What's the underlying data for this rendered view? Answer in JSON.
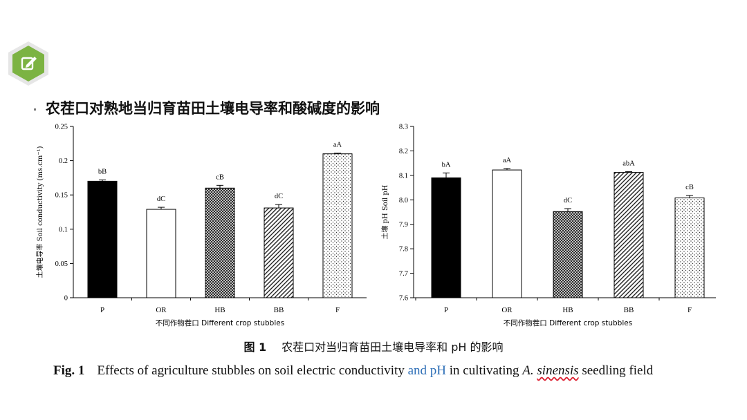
{
  "slide": {
    "title": "农茬口对熟地当归育苗田土壤电导率和酸碱度的影响",
    "badge_icon": "edit-note-icon",
    "accent_color": "#7cb342"
  },
  "caption": {
    "cn_label": "图 1",
    "cn_text": "农茬口对当归育苗田土壤电导率和 pH 的影响",
    "en_label": "Fig. 1",
    "en_text_1": "Effects of agriculture stubbles on soil electric conductivity",
    "en_text_blue": "and pH",
    "en_text_2": "in cultivating",
    "en_genus": "A.",
    "en_species": "sinensis",
    "en_text_3": "seedling field",
    "highlight_color": "#2e6fb7"
  },
  "chart_data": [
    {
      "type": "bar",
      "categories": [
        "P",
        "OR",
        "HB",
        "BB",
        "F"
      ],
      "values": [
        0.17,
        0.129,
        0.16,
        0.131,
        0.21
      ],
      "errors": [
        0.002,
        0.003,
        0.004,
        0.005,
        0.001
      ],
      "labels": [
        "bB",
        "dC",
        "cB",
        "dC",
        "aA"
      ],
      "fills": [
        "solid-black",
        "white",
        "crosshatch",
        "diagonal-stripes",
        "dots"
      ],
      "ylabel": "土壤电导率 Soil conductivity (ms.cm⁻¹)",
      "xlabel": "不同作物茬口 Different crop stubbles",
      "ylim": [
        0,
        0.25
      ],
      "yticks": [
        "0",
        "0.05",
        "0.1",
        "0.15",
        "0.2",
        "0.25"
      ]
    },
    {
      "type": "bar",
      "categories": [
        "P",
        "OR",
        "HB",
        "BB",
        "F"
      ],
      "values": [
        8.09,
        8.122,
        7.952,
        8.112,
        8.008
      ],
      "errors": [
        0.02,
        0.006,
        0.012,
        0.003,
        0.01
      ],
      "labels": [
        "bA",
        "aA",
        "dC",
        "abA",
        "cB"
      ],
      "fills": [
        "solid-black",
        "white",
        "crosshatch",
        "diagonal-stripes",
        "dots"
      ],
      "ylabel": "土壤 pH Soil pH",
      "xlabel": "不同作物茬口 Different crop stubbles",
      "ylim": [
        7.6,
        8.3
      ],
      "yticks": [
        "7.6",
        "7.7",
        "7.8",
        "7.9",
        "8.0",
        "8.1",
        "8.2",
        "8.3"
      ]
    }
  ]
}
